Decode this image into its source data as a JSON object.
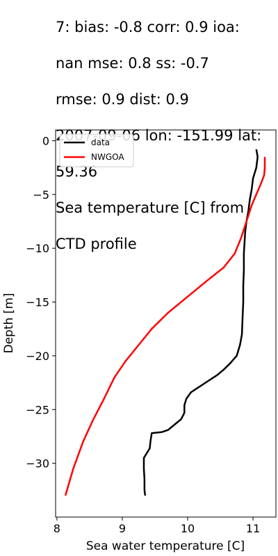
{
  "chart_data": {
    "type": "line",
    "title": "7: bias: -0.8  corr: 0.9  ioa: nan  mse: 0.8  ss: -0.7 rmse: 0.9  dist: 0.9 2007-09-06 lon: -151.99 lat: 59.36 Sea temperature [C] from CTD profile",
    "title_lines": [
      "7: bias: -0.8  corr: 0.9  ioa:",
      "nan  mse: 0.8  ss: -0.7",
      "rmse: 0.9  dist: 0.9",
      "2007-09-06 lon: -151.99 lat:",
      "59.36",
      "Sea temperature [C] from",
      "CTD profile"
    ],
    "xlabel": "Sea water temperature [C]",
    "ylabel": "Depth [m]",
    "xlim": [
      7.98,
      11.35
    ],
    "ylim": [
      -35.0,
      1.0
    ],
    "xticks": [
      8,
      9,
      10,
      11
    ],
    "yticks": [
      0,
      -5,
      -10,
      -15,
      -20,
      -25,
      -30
    ],
    "grid": false,
    "legend_position": "top-left",
    "series": [
      {
        "name": "data",
        "color": "#000000",
        "points": [
          [
            11.05,
            -0.8
          ],
          [
            11.07,
            -1.5
          ],
          [
            11.05,
            -2.5
          ],
          [
            11.0,
            -3.5
          ],
          [
            10.98,
            -4.5
          ],
          [
            10.95,
            -5.5
          ],
          [
            10.93,
            -6.5
          ],
          [
            10.9,
            -7.5
          ],
          [
            10.88,
            -8.5
          ],
          [
            10.87,
            -9.5
          ],
          [
            10.86,
            -10.5
          ],
          [
            10.86,
            -12.0
          ],
          [
            10.85,
            -13.5
          ],
          [
            10.85,
            -15.0
          ],
          [
            10.84,
            -16.5
          ],
          [
            10.83,
            -18.0
          ],
          [
            10.8,
            -19.0
          ],
          [
            10.75,
            -20.0
          ],
          [
            10.65,
            -20.7
          ],
          [
            10.55,
            -21.3
          ],
          [
            10.45,
            -21.8
          ],
          [
            10.3,
            -22.4
          ],
          [
            10.15,
            -23.0
          ],
          [
            10.05,
            -23.4
          ],
          [
            9.98,
            -24.0
          ],
          [
            9.95,
            -24.6
          ],
          [
            9.95,
            -25.3
          ],
          [
            9.9,
            -25.9
          ],
          [
            9.8,
            -26.4
          ],
          [
            9.7,
            -26.9
          ],
          [
            9.6,
            -27.1
          ],
          [
            9.45,
            -27.2
          ],
          [
            9.43,
            -28.0
          ],
          [
            9.42,
            -28.6
          ],
          [
            9.38,
            -29.0
          ],
          [
            9.33,
            -29.5
          ],
          [
            9.33,
            -30.5
          ],
          [
            9.34,
            -31.5
          ],
          [
            9.34,
            -32.5
          ],
          [
            9.35,
            -33.0
          ]
        ]
      },
      {
        "name": "NWGOA",
        "color": "#ff0000",
        "points": [
          [
            11.18,
            -1.5
          ],
          [
            11.18,
            -2.5
          ],
          [
            11.17,
            -3.2
          ],
          [
            11.12,
            -4.0
          ],
          [
            11.05,
            -5.0
          ],
          [
            10.98,
            -6.0
          ],
          [
            10.9,
            -7.5
          ],
          [
            10.82,
            -9.0
          ],
          [
            10.72,
            -10.5
          ],
          [
            10.55,
            -11.8
          ],
          [
            10.3,
            -13.0
          ],
          [
            10.0,
            -14.5
          ],
          [
            9.7,
            -16.0
          ],
          [
            9.45,
            -17.5
          ],
          [
            9.25,
            -19.0
          ],
          [
            9.05,
            -20.5
          ],
          [
            8.88,
            -22.0
          ],
          [
            8.72,
            -24.0
          ],
          [
            8.55,
            -26.0
          ],
          [
            8.4,
            -28.0
          ],
          [
            8.25,
            -30.5
          ],
          [
            8.13,
            -33.0
          ]
        ]
      }
    ]
  }
}
